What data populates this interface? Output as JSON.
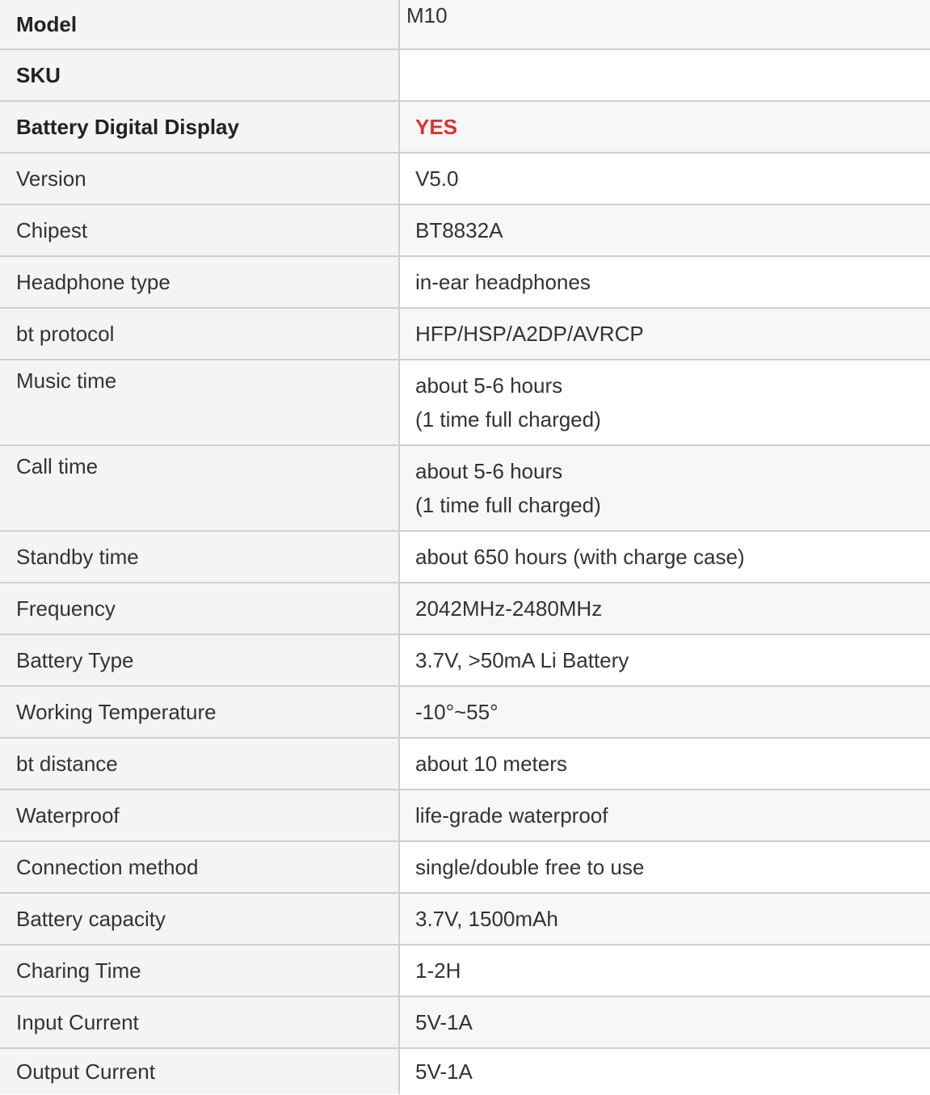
{
  "accent_color": "#e0302a",
  "rows": [
    {
      "label": "Model",
      "value": "M10",
      "bold": true
    },
    {
      "label": "SKU",
      "value": "",
      "bold": true
    },
    {
      "label": "Battery Digital Display",
      "value": "YES",
      "bold": true,
      "highlight": true
    },
    {
      "label": "Version",
      "value": "V5.0"
    },
    {
      "label": "Chipest",
      "value": "BT8832A"
    },
    {
      "label": "Headphone type",
      "value": "in-ear headphones"
    },
    {
      "label": "bt protocol",
      "value": "HFP/HSP/A2DP/AVRCP"
    },
    {
      "label": "Music time",
      "value": "about 5-6 hours",
      "value2": "(1 time full charged)"
    },
    {
      "label": "Call time",
      "value": "about 5-6 hours",
      "value2": "(1 time full charged)"
    },
    {
      "label": "Standby time",
      "value": "about 650 hours (with charge case)"
    },
    {
      "label": "Frequency",
      "value": "2042MHz-2480MHz"
    },
    {
      "label": "Battery Type",
      "value": "3.7V, >50mA Li Battery"
    },
    {
      "label": "Working Temperature",
      "value": "-10°~55°"
    },
    {
      "label": "bt distance",
      "value": "about 10 meters"
    },
    {
      "label": "Waterproof",
      "value": "life-grade waterproof"
    },
    {
      "label": "Connection method",
      "value": "single/double free to use"
    },
    {
      "label": "Battery capacity",
      "value": "3.7V, 1500mAh"
    },
    {
      "label": "Charing Time",
      "value": "1-2H"
    },
    {
      "label": "Input Current",
      "value": "5V-1A"
    },
    {
      "label": "Output Current",
      "value": "5V-1A"
    }
  ]
}
